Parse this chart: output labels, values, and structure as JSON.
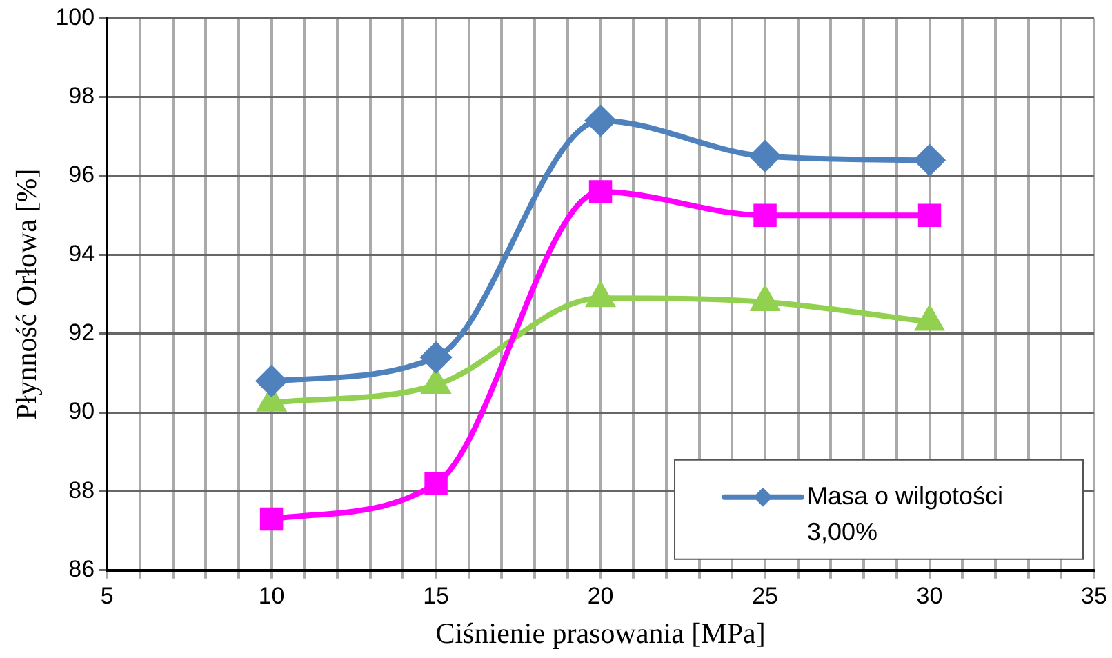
{
  "chart_data": {
    "type": "line",
    "xlabel": "Ciśnienie prasowania [MPa]",
    "ylabel": "Płynność Orłowa [%]",
    "x": [
      10,
      15,
      20,
      25,
      30
    ],
    "series": [
      {
        "name": "Masa o wilgotości 3,00%",
        "color": "#4f81bd",
        "values": [
          90.8,
          91.4,
          97.4,
          96.5,
          96.4
        ],
        "marker": "diamond"
      },
      {
        "color": "#ff00ff",
        "values": [
          87.3,
          88.2,
          95.6,
          95.0,
          95.0
        ],
        "marker": "square"
      },
      {
        "color": "#92d050",
        "values": [
          90.25,
          90.7,
          92.9,
          92.8,
          92.3
        ],
        "marker": "triangle"
      }
    ],
    "xlim": [
      5,
      35
    ],
    "xticks": [
      5,
      {
        "value": 6,
        "label": null
      },
      {
        "value": 7,
        "label": null
      },
      {
        "value": 8,
        "label": null
      },
      {
        "value": 9,
        "label": null
      },
      10,
      {
        "value": 11,
        "label": null
      },
      {
        "value": 12,
        "label": null
      },
      {
        "value": 13,
        "label": null
      },
      {
        "value": 14,
        "label": null
      },
      15,
      {
        "value": 16,
        "label": null
      },
      {
        "value": 17,
        "label": null
      },
      {
        "value": 18,
        "label": null
      },
      {
        "value": 19,
        "label": null
      },
      20,
      {
        "value": 21,
        "label": null
      },
      {
        "value": 22,
        "label": null
      },
      {
        "value": 23,
        "label": null
      },
      {
        "value": 24,
        "label": null
      },
      25,
      {
        "value": 26,
        "label": null
      },
      {
        "value": 27,
        "label": null
      },
      {
        "value": 28,
        "label": null
      },
      {
        "value": 29,
        "label": null
      },
      30,
      {
        "value": 31,
        "label": null
      },
      {
        "value": 32,
        "label": null
      },
      {
        "value": 33,
        "label": null
      },
      {
        "value": 34,
        "label": null
      },
      35
    ],
    "ylim": [
      86,
      100
    ],
    "yticks": [
      86,
      88,
      90,
      92,
      94,
      96,
      98,
      100
    ],
    "grid": true,
    "legend": "bottom right",
    "line_style": "solid"
  }
}
